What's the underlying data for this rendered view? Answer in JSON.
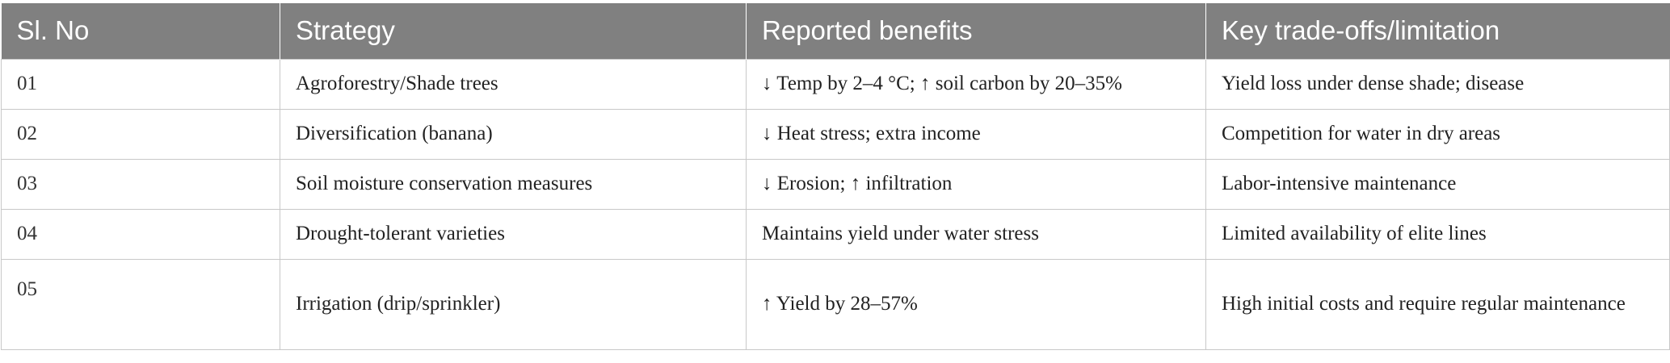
{
  "table": {
    "headers": [
      "Sl. No",
      "Strategy",
      "Reported benefits",
      "Key trade-offs/limitation"
    ],
    "rows": [
      {
        "sl": "01",
        "strategy": "Agroforestry/Shade trees",
        "benefits": "↓ Temp by 2–4 °C; ↑ soil carbon by 20–35%",
        "tradeoffs": "Yield loss under dense shade; disease"
      },
      {
        "sl": "02",
        "strategy": "Diversification (banana)",
        "benefits": "↓ Heat stress; extra income",
        "tradeoffs": "Competition for water in dry areas"
      },
      {
        "sl": "03",
        "strategy": "Soil moisture conservation measures",
        "benefits": "↓ Erosion; ↑ infiltration",
        "tradeoffs": "Labor-intensive maintenance"
      },
      {
        "sl": "04",
        "strategy": "Drought-tolerant varieties",
        "benefits": "Maintains yield under water stress",
        "tradeoffs": "Limited availability of elite lines"
      },
      {
        "sl": "05",
        "strategy": "Irrigation (drip/sprinkler)",
        "benefits": "↑ Yield by 28–57%",
        "tradeoffs": "High initial costs and require regular maintenance"
      }
    ]
  }
}
